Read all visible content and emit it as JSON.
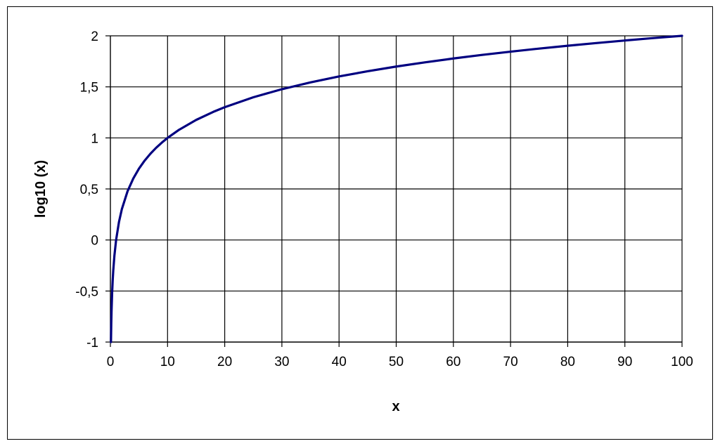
{
  "chart_data": {
    "type": "line",
    "title": "",
    "xlabel": "x",
    "ylabel": "log10 (x)",
    "xlim": [
      0,
      100
    ],
    "ylim": [
      -1,
      2
    ],
    "grid": true,
    "legend": "none",
    "x_ticks": [
      0,
      10,
      20,
      30,
      40,
      50,
      60,
      70,
      80,
      90,
      100
    ],
    "x_tick_labels": [
      "0",
      "10",
      "20",
      "30",
      "40",
      "50",
      "60",
      "70",
      "80",
      "90",
      "100"
    ],
    "y_ticks": [
      -1,
      -0.5,
      0,
      0.5,
      1,
      1.5,
      2
    ],
    "y_tick_labels": [
      "-1",
      "-0,5",
      "0",
      "0,5",
      "1",
      "1,5",
      "2"
    ],
    "series": [
      {
        "color": "#000080",
        "x": [
          0.1,
          0.15,
          0.2,
          0.3,
          0.4,
          0.5,
          0.7,
          1,
          1.5,
          2,
          3,
          4,
          5,
          6,
          7,
          8,
          9,
          10,
          12,
          15,
          18,
          20,
          25,
          30,
          35,
          40,
          45,
          50,
          55,
          60,
          65,
          70,
          75,
          80,
          85,
          90,
          95,
          100
        ],
        "y": [
          -1,
          -0.824,
          -0.699,
          -0.523,
          -0.398,
          -0.301,
          -0.155,
          0,
          0.176,
          0.301,
          0.477,
          0.602,
          0.699,
          0.778,
          0.845,
          0.903,
          0.954,
          1,
          1.079,
          1.176,
          1.255,
          1.301,
          1.398,
          1.477,
          1.544,
          1.602,
          1.653,
          1.699,
          1.74,
          1.778,
          1.813,
          1.845,
          1.875,
          1.903,
          1.929,
          1.954,
          1.978,
          2
        ]
      }
    ]
  }
}
